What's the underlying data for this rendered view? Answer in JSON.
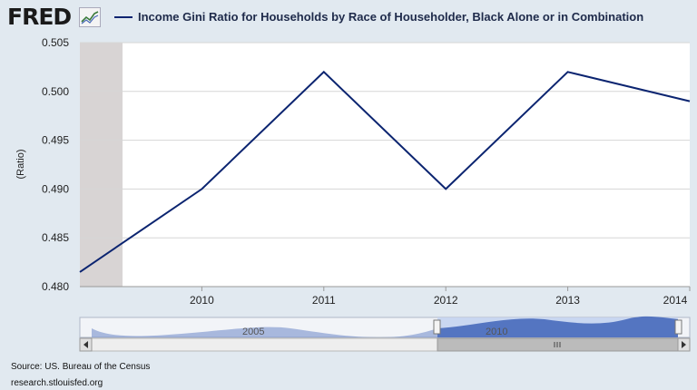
{
  "header": {
    "logo_text": "FRED",
    "logo_icon": "fred-chart-icon",
    "legend_label": "Income Gini Ratio for Households by Race of Householder, Black Alone or in Combination"
  },
  "chart_data": {
    "type": "line",
    "title": "",
    "xlabel": "",
    "ylabel": "(Ratio)",
    "x": [
      2009.0,
      2010,
      2011,
      2012,
      2013,
      2014
    ],
    "series": [
      {
        "name": "Income Gini Ratio for Households by Race of Householder, Black Alone or in Combination",
        "values": [
          0.4815,
          0.49,
          0.502,
          0.49,
          0.502,
          0.499
        ],
        "color": "#0b2470"
      }
    ],
    "x_ticks": [
      "2010",
      "2011",
      "2012",
      "2013",
      "2014"
    ],
    "y_ticks": [
      "0.480",
      "0.485",
      "0.490",
      "0.495",
      "0.500",
      "0.505"
    ],
    "ylim": [
      0.48,
      0.505
    ],
    "grid": true,
    "recession_band": {
      "start": 2009.0,
      "end": 2009.35,
      "color": "#d8d4d4"
    }
  },
  "navigator": {
    "label_left": "2005",
    "label_right": "2010",
    "scroll_left_icon": "arrow-left-icon",
    "scroll_right_icon": "arrow-right-icon",
    "grip_icon": "scrollbar-grip-icon"
  },
  "footer": {
    "source": "Source: US. Bureau of the Census",
    "site": "research.stlouisfed.org"
  }
}
